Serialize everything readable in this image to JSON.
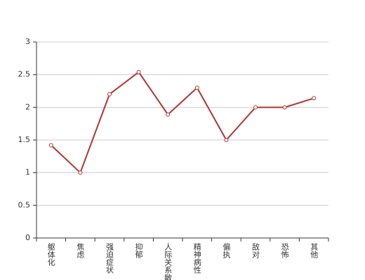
{
  "chart_data": {
    "type": "line",
    "categories": [
      "躯体化",
      "焦虑",
      "强迫症状",
      "抑郁",
      "人际关系敏感",
      "精神病性",
      "偏执",
      "敌对",
      "恐怖",
      "其他"
    ],
    "series": [
      {
        "name": null,
        "color": "#b83230",
        "values": [
          1.42,
          1.0,
          2.2,
          2.54,
          1.89,
          2.3,
          1.5,
          2.0,
          2.0,
          2.14
        ]
      }
    ],
    "ylim": [
      0,
      3
    ],
    "yticks": [
      0,
      0.5,
      1,
      1.5,
      2,
      2.5,
      3
    ],
    "grid": true
  }
}
